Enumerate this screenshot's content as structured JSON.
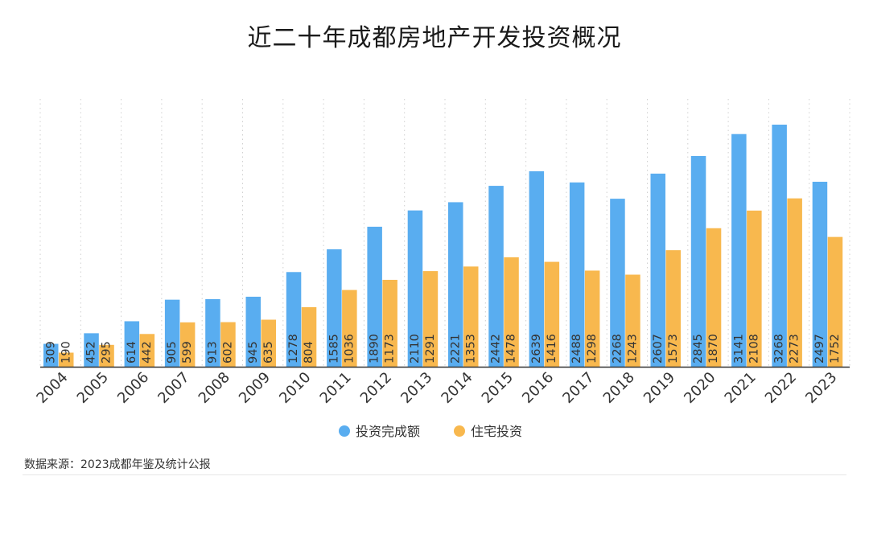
{
  "title": "近二十年成都房地产开发投资概况",
  "source": "数据来源：2023成都年鉴及统计公报",
  "colors": {
    "invest": "#59ADF0",
    "housing": "#F8B84E"
  },
  "chart_data": {
    "type": "bar",
    "title": "近二十年成都房地产开发投资概况",
    "categories": [
      "2004",
      "2005",
      "2006",
      "2007",
      "2008",
      "2009",
      "2010",
      "2011",
      "2012",
      "2013",
      "2014",
      "2015",
      "2016",
      "2017",
      "2018",
      "2019",
      "2020",
      "2021",
      "2022",
      "2023"
    ],
    "series": [
      {
        "name": "投资完成额",
        "values": [
          309,
          452,
          614,
          905,
          913,
          945,
          1278,
          1585,
          1890,
          2110,
          2221,
          2442,
          2639,
          2488,
          2268,
          2607,
          2845,
          3141,
          3268,
          2497
        ]
      },
      {
        "name": "住宅投资",
        "values": [
          190,
          295,
          442,
          599,
          602,
          635,
          804,
          1036,
          1173,
          1291,
          1353,
          1478,
          1416,
          1298,
          1243,
          1573,
          1870,
          2108,
          2273,
          1752
        ]
      }
    ],
    "ylim": [
      0,
      3600
    ],
    "grid": "vertical-dotted",
    "legend": "bottom-center"
  }
}
